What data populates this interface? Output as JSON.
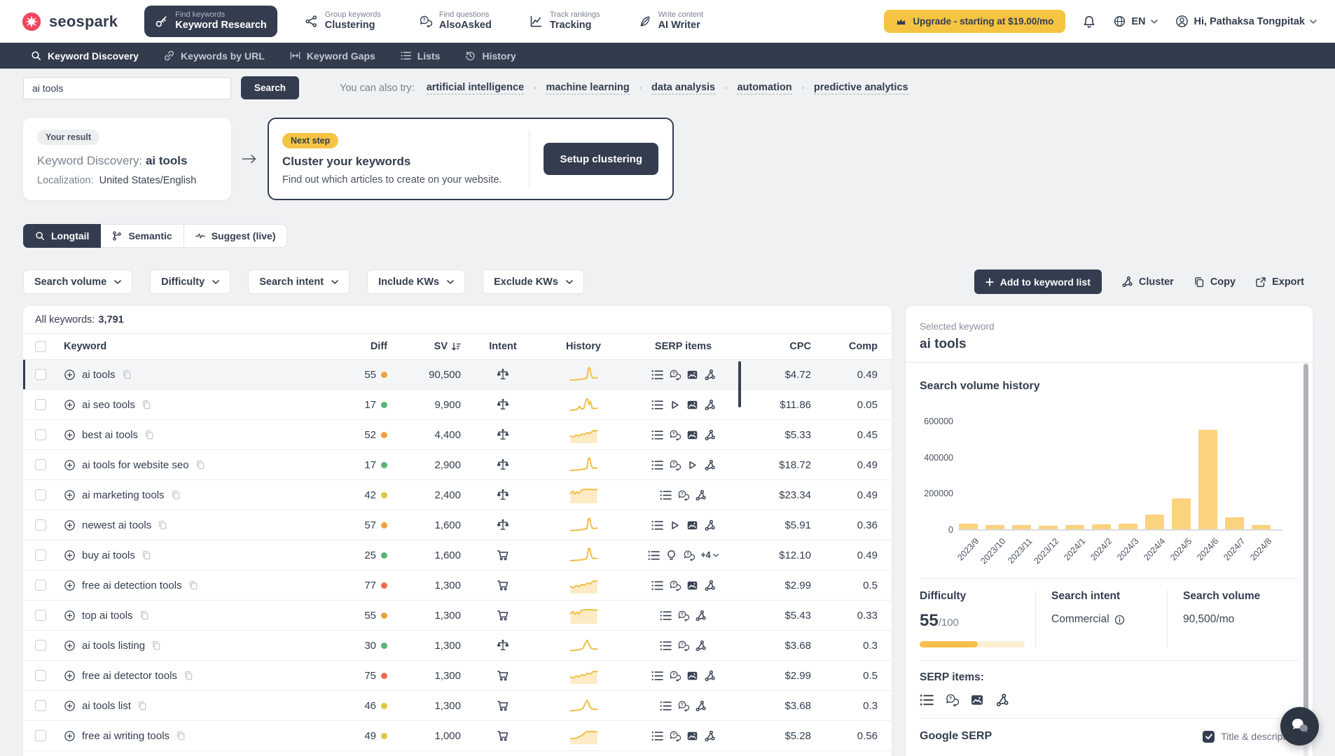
{
  "brand": {
    "name": "seospark"
  },
  "top_nav": {
    "items": [
      {
        "super": "Find keywords",
        "label": "Keyword Research",
        "icon": "key-icon",
        "active": true
      },
      {
        "super": "Group keywords",
        "label": "Clustering",
        "icon": "cluster-icon",
        "active": false
      },
      {
        "super": "Find questions",
        "label": "AlsoAsked",
        "icon": "chat-question-icon",
        "active": false
      },
      {
        "super": "Track rankings",
        "label": "Tracking",
        "icon": "chart-line-icon",
        "active": false
      },
      {
        "super": "Write content",
        "label": "AI Writer",
        "icon": "feather-icon",
        "active": false
      }
    ],
    "upgrade_label": "Upgrade - starting at $19.00/mo",
    "language": "EN",
    "greeting": "Hi, Pathaksa Tongpitak"
  },
  "sub_nav": {
    "items": [
      {
        "label": "Keyword Discovery",
        "icon": "search-icon",
        "active": true
      },
      {
        "label": "Keywords by URL",
        "icon": "link-icon",
        "active": false
      },
      {
        "label": "Keyword Gaps",
        "icon": "gaps-icon",
        "active": false
      },
      {
        "label": "Lists",
        "icon": "list-icon",
        "active": false
      },
      {
        "label": "History",
        "icon": "history-icon",
        "active": false
      }
    ]
  },
  "search": {
    "value": "ai tools",
    "button": "Search",
    "try_label": "You can also try:",
    "suggestions": [
      "artificial intelligence",
      "machine learning",
      "data analysis",
      "automation",
      "predictive analytics"
    ]
  },
  "result_card": {
    "badge": "Your result",
    "title_label": "Keyword Discovery:",
    "title_value": "ai tools",
    "loc_label": "Localization:",
    "loc_value": "United States/English"
  },
  "next_step_card": {
    "badge": "Next step",
    "title": "Cluster your keywords",
    "description": "Find out which articles to create on your website.",
    "button": "Setup clustering"
  },
  "tabs": [
    {
      "label": "Longtail",
      "icon": "search-icon",
      "active": true
    },
    {
      "label": "Semantic",
      "icon": "branch-icon",
      "active": false
    },
    {
      "label": "Suggest (live)",
      "icon": "pulse-icon",
      "active": false
    }
  ],
  "filters": [
    "Search volume",
    "Difficulty",
    "Search intent",
    "Include KWs",
    "Exclude KWs"
  ],
  "actions": {
    "add": "Add to keyword list",
    "cluster": "Cluster",
    "copy": "Copy",
    "export": "Export"
  },
  "table": {
    "summary_label": "All keywords:",
    "summary_value": "3,791",
    "columns": [
      "Keyword",
      "Diff",
      "SV",
      "Intent",
      "History",
      "SERP items",
      "CPC",
      "Comp"
    ],
    "rows": [
      {
        "keyword": "ai tools",
        "diff": "55",
        "diff_level": "orange",
        "sv": "90,500",
        "intent": "commercial",
        "trend": "spike",
        "serp": [
          "list",
          "chat",
          "image",
          "share"
        ],
        "cpc": "$4.72",
        "comp": "0.49",
        "selected": true
      },
      {
        "keyword": "ai seo tools",
        "diff": "17",
        "diff_level": "green",
        "sv": "9,900",
        "intent": "commercial",
        "trend": "spike2",
        "serp": [
          "list",
          "play",
          "image",
          "share"
        ],
        "cpc": "$11.86",
        "comp": "0.05"
      },
      {
        "keyword": "best ai tools",
        "diff": "52",
        "diff_level": "orange",
        "sv": "4,400",
        "intent": "commercial",
        "trend": "wave",
        "serp": [
          "list",
          "chat",
          "image",
          "share"
        ],
        "cpc": "$5.33",
        "comp": "0.45"
      },
      {
        "keyword": "ai tools for website seo",
        "diff": "17",
        "diff_level": "green",
        "sv": "2,900",
        "intent": "commercial",
        "trend": "spike",
        "serp": [
          "list",
          "chat",
          "play",
          "share"
        ],
        "cpc": "$18.72",
        "comp": "0.49"
      },
      {
        "keyword": "ai marketing tools",
        "diff": "42",
        "diff_level": "yellow",
        "sv": "2,400",
        "intent": "commercial",
        "trend": "waveflat",
        "serp": [
          "list",
          "chat",
          "share"
        ],
        "cpc": "$23.34",
        "comp": "0.49"
      },
      {
        "keyword": "newest ai tools",
        "diff": "57",
        "diff_level": "orange",
        "sv": "1,600",
        "intent": "commercial",
        "trend": "spike",
        "serp": [
          "list",
          "play",
          "image",
          "share"
        ],
        "cpc": "$5.91",
        "comp": "0.36"
      },
      {
        "keyword": "buy ai tools",
        "diff": "25",
        "diff_level": "green",
        "sv": "1,600",
        "intent": "transactional",
        "trend": "spike",
        "serp": [
          "list",
          "bulb",
          "chat",
          "more"
        ],
        "more_label": "+4",
        "cpc": "$12.10",
        "comp": "0.49"
      },
      {
        "keyword": "free ai detection tools",
        "diff": "77",
        "diff_level": "red",
        "sv": "1,300",
        "intent": "transactional",
        "trend": "wave",
        "serp": [
          "list",
          "chat",
          "image",
          "share"
        ],
        "cpc": "$2.99",
        "comp": "0.5"
      },
      {
        "keyword": "top ai tools",
        "diff": "55",
        "diff_level": "orange",
        "sv": "1,300",
        "intent": "transactional",
        "trend": "waveflat",
        "serp": [
          "list",
          "chat",
          "share"
        ],
        "cpc": "$5.43",
        "comp": "0.33"
      },
      {
        "keyword": "ai tools listing",
        "diff": "30",
        "diff_level": "green",
        "sv": "1,300",
        "intent": "commercial",
        "trend": "bump",
        "serp": [
          "list",
          "chat",
          "share"
        ],
        "cpc": "$3.68",
        "comp": "0.3"
      },
      {
        "keyword": "free ai detector tools",
        "diff": "75",
        "diff_level": "red",
        "sv": "1,300",
        "intent": "transactional",
        "trend": "wave",
        "serp": [
          "list",
          "chat",
          "image",
          "share"
        ],
        "cpc": "$2.99",
        "comp": "0.5"
      },
      {
        "keyword": "ai tools list",
        "diff": "46",
        "diff_level": "yellow",
        "sv": "1,300",
        "intent": "transactional",
        "trend": "bump",
        "serp": [
          "list",
          "chat",
          "share"
        ],
        "cpc": "$3.68",
        "comp": "0.3"
      },
      {
        "keyword": "free ai writing tools",
        "diff": "49",
        "diff_level": "yellow",
        "sv": "1,000",
        "intent": "transactional",
        "trend": "rise",
        "serp": [
          "list",
          "chat",
          "image",
          "share"
        ],
        "cpc": "$5.28",
        "comp": "0.56"
      }
    ]
  },
  "detail_panel": {
    "selected_label": "Selected keyword",
    "selected_keyword": "ai tools",
    "chart_title": "Search volume history",
    "difficulty_label": "Difficulty",
    "difficulty_value": "55",
    "difficulty_max": "/100",
    "difficulty_percent": 55,
    "intent_label": "Search intent",
    "intent_value": "Commercial",
    "volume_label": "Search volume",
    "volume_value": "90,500/mo",
    "serp_items_label": "SERP items:",
    "serp_items": [
      "list",
      "chat",
      "image",
      "share"
    ],
    "google_serp_label": "Google SERP",
    "serp_toggle_label": "Title & description",
    "serp_toggle_checked": true
  },
  "chart_data": {
    "type": "bar",
    "title": "Search volume history",
    "categories": [
      "2023/9",
      "2023/10",
      "2023/11",
      "2023/12",
      "2024/1",
      "2024/2",
      "2024/3",
      "2024/4",
      "2024/5",
      "2024/6",
      "2024/7",
      "2024/8"
    ],
    "values": [
      30000,
      25000,
      25000,
      20000,
      25000,
      28000,
      30000,
      80000,
      170000,
      550000,
      65000,
      25000
    ],
    "xlabel": "",
    "ylabel": "",
    "yticks": [
      0,
      200000,
      400000,
      600000
    ],
    "ylim": [
      0,
      600000
    ],
    "grid": false,
    "legend": false,
    "bar_color": "#FBD27E"
  },
  "colors": {
    "accent_yellow": "#F6C443",
    "dark_navy": "#333D4F",
    "spark_line": "#F2BE45",
    "diff_levels": {
      "green": "#58B573",
      "yellow": "#DFC73F",
      "orange": "#F0A13B",
      "red": "#EF6A4E"
    }
  }
}
